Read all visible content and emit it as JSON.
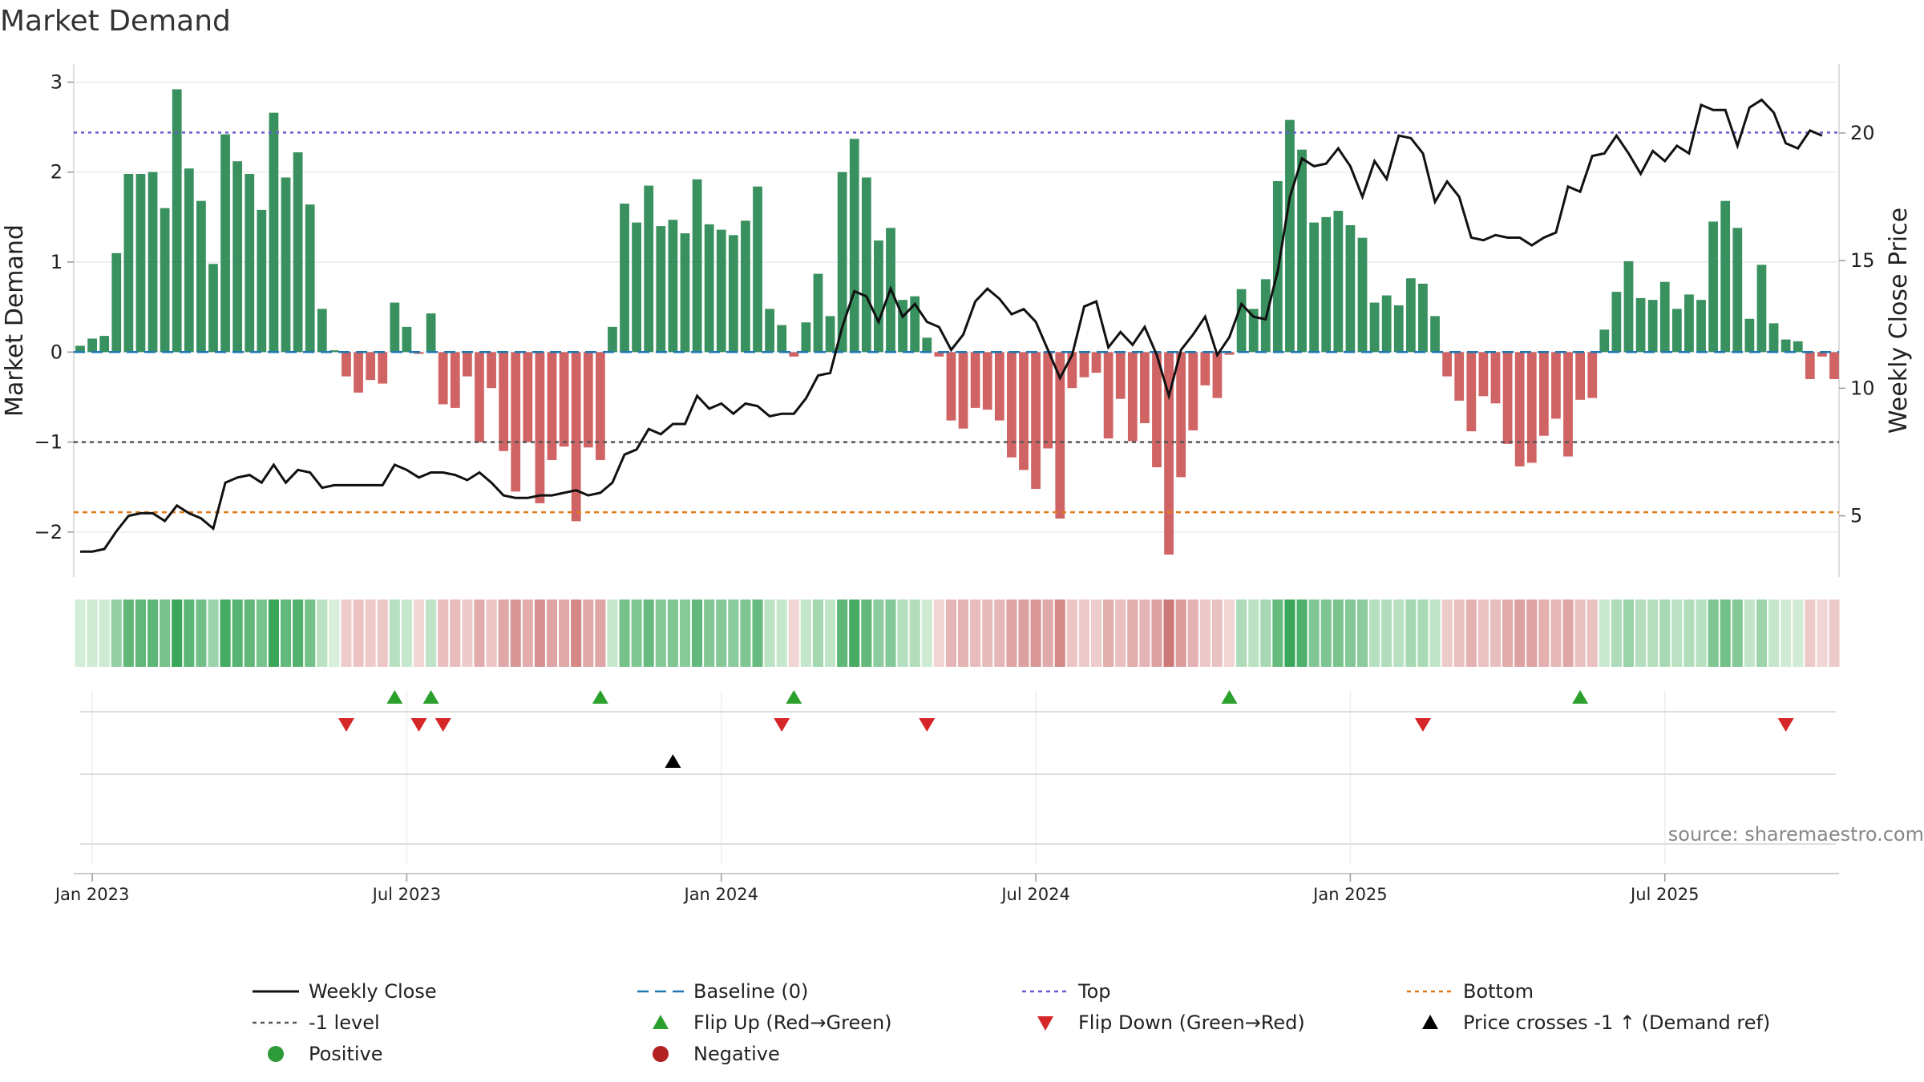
{
  "chart_data": {
    "type": "bar",
    "title": "Market Demand",
    "ylabel": "Market Demand",
    "y2label": "Weekly Close Price",
    "ylim": [
      -2.5,
      3.2
    ],
    "y2lim": [
      2.6,
      22.7
    ],
    "yticks": [
      3,
      2,
      1,
      0,
      -1,
      -2
    ],
    "y2ticks": [
      20,
      15,
      10,
      5
    ],
    "xticks": [
      "Jan 2023",
      "Jul 2023",
      "Jan 2024",
      "Jul 2024",
      "Jan 2025",
      "Jul 2025"
    ],
    "reference_lines": {
      "top": 2.44,
      "bottom": -1.78,
      "minus_one": -1,
      "baseline": 0
    },
    "demand": [
      0.07,
      0.15,
      0.18,
      1.1,
      1.98,
      1.98,
      2.0,
      1.6,
      2.92,
      2.04,
      1.68,
      0.98,
      2.42,
      2.12,
      1.98,
      1.58,
      2.66,
      1.94,
      2.22,
      1.64,
      0.48,
      0.02,
      -0.27,
      -0.45,
      -0.31,
      -0.35,
      0.55,
      0.28,
      -0.02,
      0.43,
      -0.58,
      -0.62,
      -0.27,
      -1.0,
      -0.4,
      -1.1,
      -1.55,
      -1.0,
      -1.68,
      -1.2,
      -1.05,
      -1.88,
      -1.06,
      -1.2,
      0.28,
      1.65,
      1.44,
      1.85,
      1.4,
      1.47,
      1.32,
      1.92,
      1.42,
      1.36,
      1.3,
      1.46,
      1.84,
      0.48,
      0.3,
      -0.05,
      0.33,
      0.87,
      0.4,
      2.0,
      2.37,
      1.94,
      1.24,
      1.38,
      0.58,
      0.62,
      0.16,
      -0.05,
      -0.76,
      -0.85,
      -0.62,
      -0.64,
      -0.76,
      -1.17,
      -1.31,
      -1.52,
      -1.07,
      -1.85,
      -0.4,
      -0.28,
      -0.23,
      -0.96,
      -0.52,
      -0.99,
      -0.79,
      -1.28,
      -2.25,
      -1.39,
      -0.87,
      -0.37,
      -0.51,
      -0.03,
      0.7,
      0.48,
      0.81,
      1.9,
      2.58,
      2.25,
      1.44,
      1.5,
      1.57,
      1.41,
      1.27,
      0.55,
      0.63,
      0.52,
      0.82,
      0.76,
      0.4,
      -0.27,
      -0.54,
      -0.88,
      -0.49,
      -0.57,
      -1.02,
      -1.27,
      -1.23,
      -0.93,
      -0.74,
      -1.16,
      -0.53,
      -0.51,
      0.25,
      0.67,
      1.01,
      0.6,
      0.58,
      0.78,
      0.48,
      0.64,
      0.58,
      1.45,
      1.68,
      1.38,
      0.37,
      0.97,
      0.32,
      0.14,
      0.12,
      -0.3,
      -0.05,
      -0.3
    ],
    "close": [
      3.6,
      3.6,
      3.7,
      4.4,
      5.0,
      5.1,
      5.1,
      4.8,
      5.4,
      5.1,
      4.9,
      4.5,
      6.3,
      6.5,
      6.6,
      6.3,
      7.0,
      6.3,
      6.8,
      6.7,
      6.1,
      6.2,
      6.2,
      6.2,
      6.2,
      6.2,
      7.0,
      6.8,
      6.5,
      6.7,
      6.7,
      6.6,
      6.4,
      6.7,
      6.3,
      5.8,
      5.7,
      5.7,
      5.8,
      5.8,
      5.9,
      6.0,
      5.8,
      5.9,
      6.3,
      7.4,
      7.6,
      8.4,
      8.2,
      8.6,
      8.6,
      9.7,
      9.2,
      9.4,
      9.0,
      9.4,
      9.3,
      8.9,
      9.0,
      9.0,
      9.6,
      10.5,
      10.6,
      12.4,
      13.8,
      13.6,
      12.6,
      13.9,
      12.8,
      13.3,
      12.6,
      12.4,
      11.5,
      12.1,
      13.4,
      13.9,
      13.5,
      12.9,
      13.1,
      12.6,
      11.5,
      10.4,
      11.3,
      13.2,
      13.4,
      11.6,
      12.2,
      11.7,
      12.4,
      11.3,
      9.7,
      11.5,
      12.1,
      12.8,
      11.3,
      12.0,
      13.3,
      12.8,
      12.7,
      14.6,
      17.5,
      19.0,
      18.7,
      18.8,
      19.4,
      18.7,
      17.5,
      18.9,
      18.2,
      19.9,
      19.8,
      19.2,
      17.3,
      18.1,
      17.5,
      15.9,
      15.8,
      16.0,
      15.9,
      15.9,
      15.6,
      15.9,
      16.1,
      17.9,
      17.7,
      19.1,
      19.2,
      19.9,
      19.2,
      18.4,
      19.3,
      18.9,
      19.5,
      19.2,
      21.1,
      20.9,
      20.9,
      19.5,
      21.0,
      21.3,
      20.8,
      19.6,
      19.4,
      20.1,
      19.9
    ],
    "flip_up": [
      26,
      29,
      43,
      59,
      95,
      124
    ],
    "flip_down": [
      22,
      28,
      30,
      58,
      70,
      111,
      141
    ],
    "price_cross": [
      49
    ],
    "legend": [
      {
        "label": "Weekly Close",
        "marker": "line"
      },
      {
        "label": "Baseline (0)",
        "marker": "dash"
      },
      {
        "label": "Top",
        "marker": "dot"
      },
      {
        "label": "Bottom",
        "marker": "dot"
      },
      {
        "label": "-1 level",
        "marker": "dot"
      },
      {
        "label": "Flip Up (Red→Green)",
        "marker": "triangle-up"
      },
      {
        "label": "Flip Down (Green→Red)",
        "marker": "triangle-down"
      },
      {
        "label": "Price crosses -1 ↑ (Demand ref)",
        "marker": "triangle-up"
      },
      {
        "label": "Positive",
        "marker": "circle"
      },
      {
        "label": "Negative",
        "marker": "circle"
      }
    ]
  },
  "colors": {
    "positive_bar": "#2e8b57",
    "negative_bar": "#cd5c5c",
    "close_line": "#111111",
    "baseline": "#1f77b4",
    "top_line": "#6a5acd",
    "bottom_line": "#e07b1a",
    "minus_one_line": "#555555",
    "flip_up": "#2ca02c",
    "flip_down": "#d62728",
    "price_cross": "#000000",
    "positive_dot": "#2e9b3a",
    "negative_dot": "#b22222"
  },
  "source_text": "source: sharemaestro.com"
}
